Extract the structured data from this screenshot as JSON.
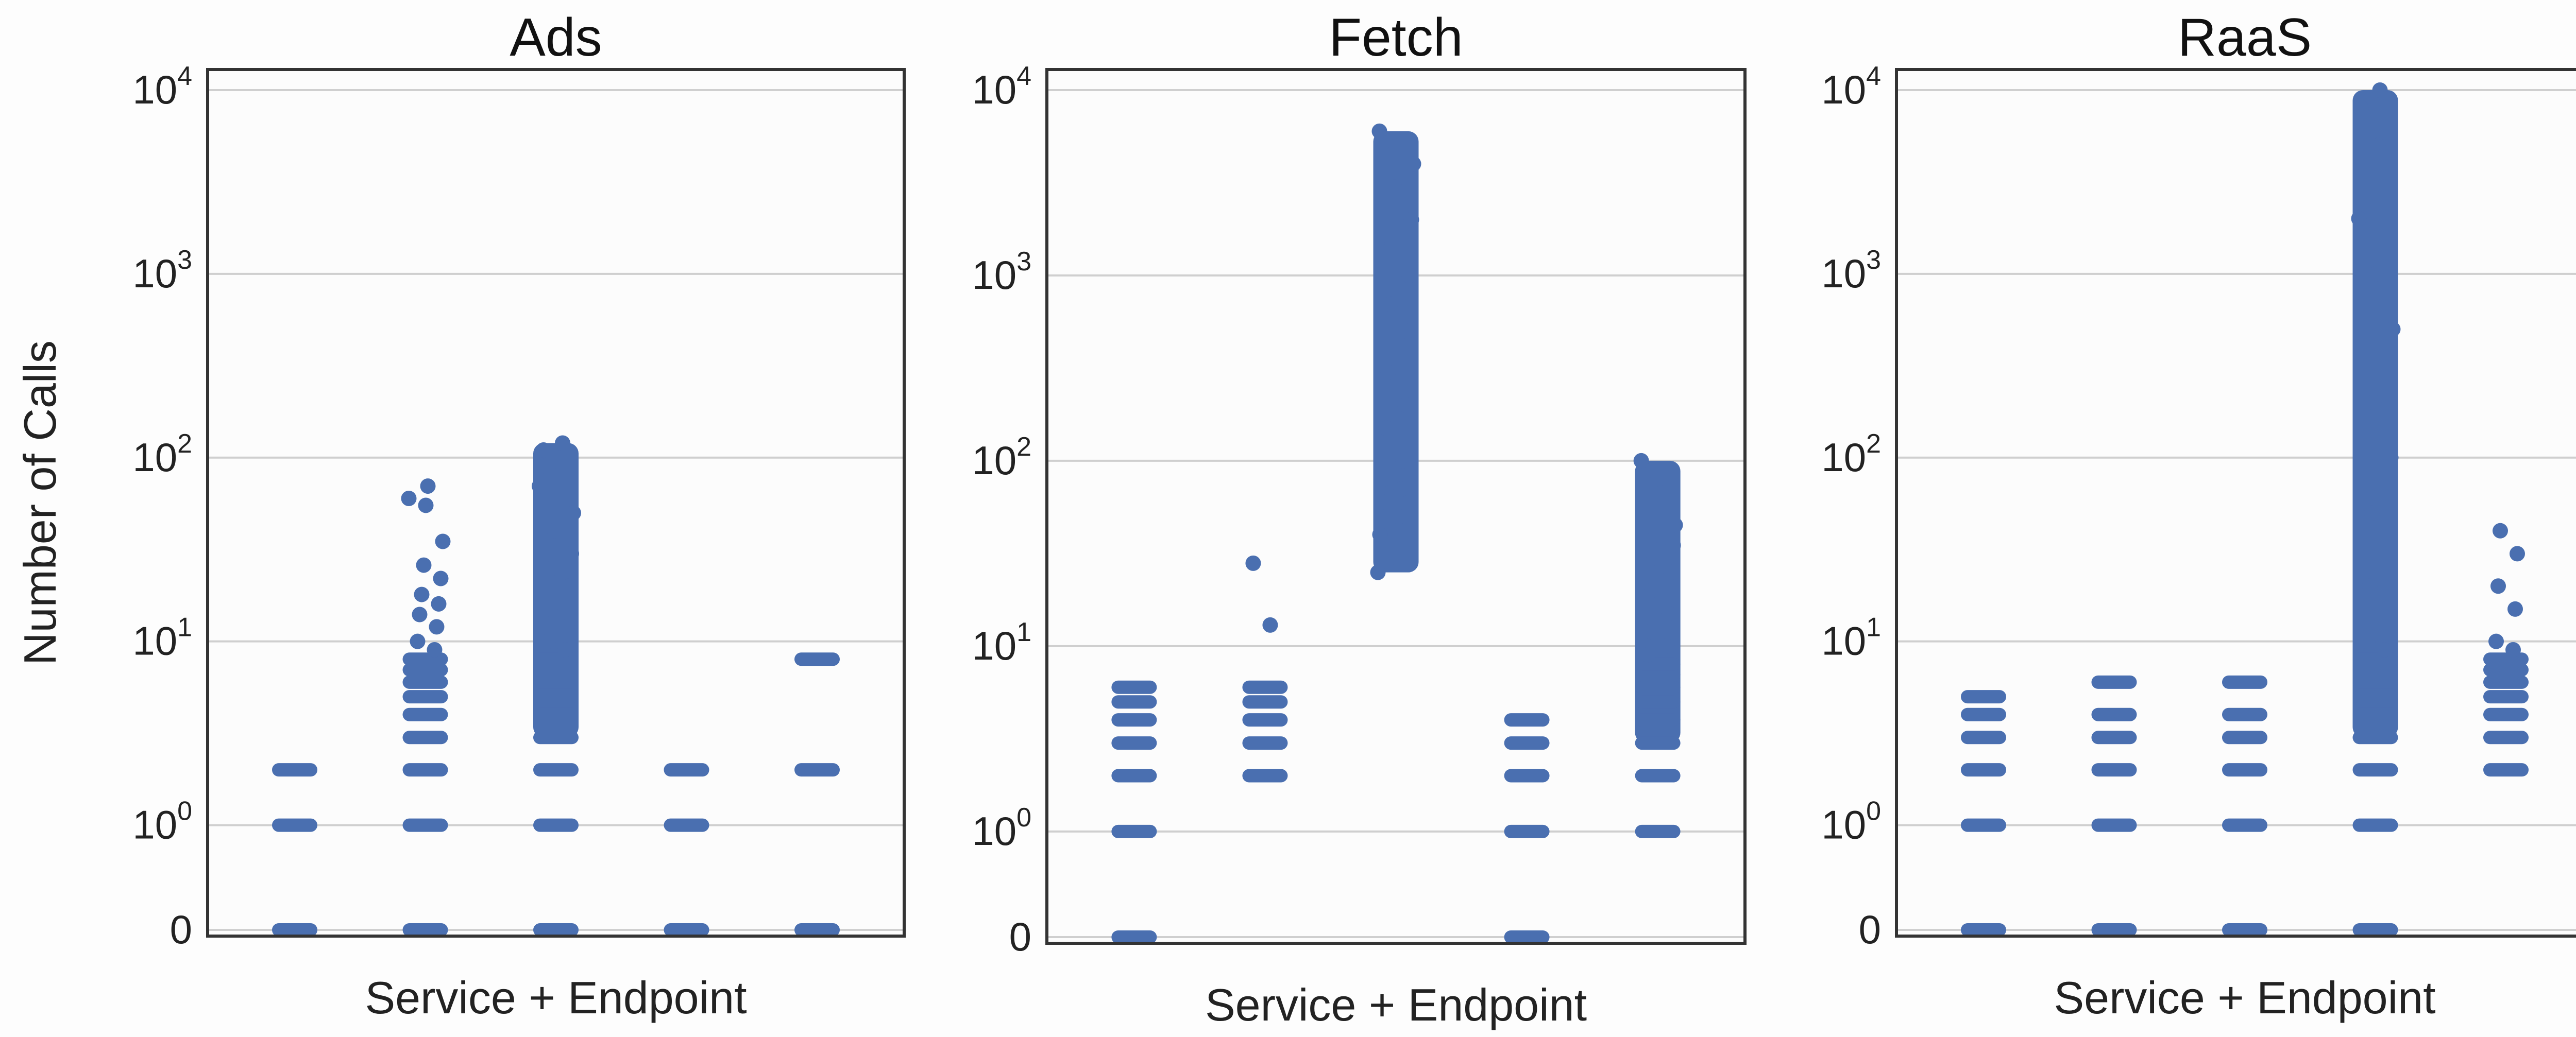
{
  "chart_data": [
    {
      "type": "scatter",
      "title": "Ads",
      "xlabel": "Service + Endpoint",
      "ylabel": "Number of Calls",
      "y_scale": "symlog",
      "yticks": [
        "0",
        "10^0",
        "10^1",
        "10^2",
        "10^3",
        "10^4"
      ],
      "grid": "horizontal",
      "color": "#4a6fb0",
      "series": [
        {
          "x": 1,
          "values": [
            0,
            1,
            2
          ]
        },
        {
          "x": 2,
          "values": [
            0,
            1,
            2,
            3,
            4,
            5,
            6,
            7,
            8,
            9,
            10,
            12,
            14,
            16,
            18,
            22,
            26,
            35,
            55,
            60,
            70
          ]
        },
        {
          "x": 3,
          "values": [
            0,
            1,
            2,
            3,
            4,
            5,
            6,
            7,
            8,
            9,
            10,
            12,
            15,
            20,
            25,
            30,
            40,
            50,
            60,
            70,
            80,
            90,
            100,
            110,
            120
          ]
        },
        {
          "x": 4,
          "values": [
            0,
            1,
            2
          ]
        },
        {
          "x": 5,
          "values": [
            0,
            2,
            8
          ]
        }
      ]
    },
    {
      "type": "scatter",
      "title": "Fetch",
      "xlabel": "Service + Endpoint",
      "ylabel": "",
      "y_scale": "symlog",
      "yticks": [
        "0",
        "10^0",
        "10^1",
        "10^2",
        "10^3",
        "10^4"
      ],
      "grid": "horizontal",
      "color": "#4a6fb0",
      "series": [
        {
          "x": 1,
          "values": [
            0,
            1,
            2,
            3,
            4,
            5,
            6
          ]
        },
        {
          "x": 2,
          "values": [
            2,
            3,
            4,
            5,
            6,
            13,
            28
          ]
        },
        {
          "x": 3,
          "values": [
            25,
            30,
            40,
            50,
            60,
            70,
            80,
            100,
            150,
            200,
            300,
            500,
            700,
            1000,
            1500,
            2000,
            3000,
            4000,
            5000,
            6000
          ]
        },
        {
          "x": 4,
          "values": [
            0,
            1,
            2,
            3,
            4
          ]
        },
        {
          "x": 5,
          "values": [
            1,
            2,
            3,
            4,
            5,
            6,
            7,
            8,
            9,
            10,
            12,
            15,
            20,
            25,
            30,
            35,
            40,
            45,
            80,
            100
          ]
        }
      ]
    },
    {
      "type": "scatter",
      "title": "RaaS",
      "xlabel": "Service + Endpoint",
      "ylabel": "",
      "y_scale": "symlog",
      "yticks": [
        "0",
        "10^0",
        "10^1",
        "10^2",
        "10^3",
        "10^4"
      ],
      "grid": "horizontal",
      "color": "#4a6fb0",
      "series": [
        {
          "x": 1,
          "values": [
            0,
            1,
            2,
            3,
            4,
            5
          ]
        },
        {
          "x": 2,
          "values": [
            0,
            1,
            2,
            3,
            4,
            6
          ]
        },
        {
          "x": 3,
          "values": [
            0,
            1,
            2,
            3,
            4,
            6
          ]
        },
        {
          "x": 4,
          "values": [
            0,
            1,
            2,
            3,
            4,
            5,
            6,
            7,
            8,
            9,
            10,
            15,
            20,
            30,
            50,
            100,
            200,
            500,
            1000,
            2000,
            5000,
            8000,
            10000
          ]
        },
        {
          "x": 5,
          "values": [
            2,
            3,
            4,
            5,
            6,
            7,
            8,
            9,
            10,
            15,
            20,
            30,
            40
          ]
        }
      ]
    }
  ]
}
